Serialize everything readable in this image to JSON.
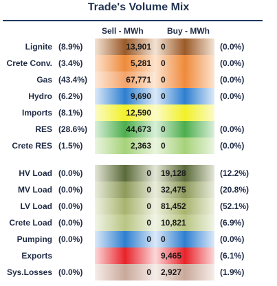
{
  "title": "Trade's Volume Mix",
  "headers": {
    "sell": "Sell - MWh",
    "buy": "Buy - MWh"
  },
  "rows": [
    {
      "label": "Lignite",
      "sell_pct": "(8.9%)",
      "sell": "13,901",
      "buy": "0",
      "buy_pct": "(0.0%)",
      "sell_color": "#9a5a28",
      "sell_light": "#f3e3d4",
      "buy_color": "#9a5a28",
      "buy_light": "#f3e3d4"
    },
    {
      "label": "Crete Conv.",
      "sell_pct": "(3.4%)",
      "sell": "5,281",
      "buy": "0",
      "buy_pct": "(0.0%)",
      "sell_color": "#ee8a3a",
      "sell_light": "#fde3cf",
      "buy_color": "#ee8a3a",
      "buy_light": "#fde3cf"
    },
    {
      "label": "Gas",
      "sell_pct": "(43.4%)",
      "sell": "67,771",
      "buy": "0",
      "buy_pct": "(0.0%)",
      "sell_color": "#f4a46a",
      "sell_light": "#fde9d9",
      "buy_color": "#f08a3c",
      "buy_light": "#fde3cf"
    },
    {
      "label": "Hydro",
      "sell_pct": "(6.2%)",
      "sell": "9,690",
      "buy": "0",
      "buy_pct": "(0.0%)",
      "sell_color": "#2f7fd0",
      "sell_light": "#dbe9f8",
      "buy_color": "#2f7fd0",
      "buy_light": "#dbe9f8"
    },
    {
      "label": "Imports",
      "sell_pct": "(8.1%)",
      "sell": "12,590",
      "buy": "",
      "buy_pct": "",
      "sell_color": "#f2f028",
      "sell_light": "#fbfbc8",
      "buy_color": "#f2f028",
      "buy_light": "#fbfbc8"
    },
    {
      "label": "RES",
      "sell_pct": "(28.6%)",
      "sell": "44,673",
      "buy": "0",
      "buy_pct": "(0.0%)",
      "sell_color": "#4cae4c",
      "sell_light": "#d9efd9",
      "buy_color": "#4cae4c",
      "buy_light": "#d9efd9"
    },
    {
      "label": "Crete RES",
      "sell_pct": "(1.5%)",
      "sell": "2,363",
      "buy": "0",
      "buy_pct": "(0.0%)",
      "sell_color": "#a6d27a",
      "sell_light": "#eaf5df",
      "buy_color": "#a6d27a",
      "buy_light": "#eaf5df"
    },
    {
      "label": "HV Load",
      "sell_pct": "(0.0%)",
      "sell": "0",
      "buy": "19,128",
      "buy_pct": "(12.2%)",
      "sell_color": "#5b6a3a",
      "sell_light": "#e3e6d6",
      "buy_color": "#5b6a3a",
      "buy_light": "#e3e6d6"
    },
    {
      "label": "MV Load",
      "sell_pct": "(0.0%)",
      "sell": "0",
      "buy": "32,475",
      "buy_pct": "(20.8%)",
      "sell_color": "#8d9a5a",
      "sell_light": "#e9ecdb",
      "buy_color": "#8d9a5a",
      "buy_light": "#e9ecdb"
    },
    {
      "label": "LV Load",
      "sell_pct": "(0.0%)",
      "sell": "0",
      "buy": "81,452",
      "buy_pct": "(52.1%)",
      "sell_color": "#a8b36e",
      "sell_light": "#eef1e0",
      "buy_color": "#a8b36e",
      "buy_light": "#eef1e0"
    },
    {
      "label": "Crete Load",
      "sell_pct": "(0.0%)",
      "sell": "0",
      "buy": "10,821",
      "buy_pct": "(6.9%)",
      "sell_color": "#b8c583",
      "sell_light": "#f1f4e6",
      "buy_color": "#b8c583",
      "buy_light": "#f1f4e6"
    },
    {
      "label": "Pumping",
      "sell_pct": "(0.0%)",
      "sell": "0",
      "buy": "0",
      "buy_pct": "(0.0%)",
      "sell_color": "#2f7fd0",
      "sell_light": "#dbe9f8",
      "buy_color": "#2f7fd0",
      "buy_light": "#dbe9f8"
    },
    {
      "label": "Exports",
      "sell_pct": "",
      "sell": "",
      "buy": "9,465",
      "buy_pct": "(6.1%)",
      "sell_color": "#e8232a",
      "sell_light": "#fbd8d9",
      "buy_color": "#e8232a",
      "buy_light": "#fbd8d9"
    },
    {
      "label": "Sys.Losses",
      "sell_pct": "(0.0%)",
      "sell": "0",
      "buy": "2,927",
      "buy_pct": "(1.9%)",
      "sell_color": "#c9a99a",
      "sell_light": "#f6ede9",
      "buy_color": "#c9a99a",
      "buy_light": "#f6ede9"
    }
  ]
}
